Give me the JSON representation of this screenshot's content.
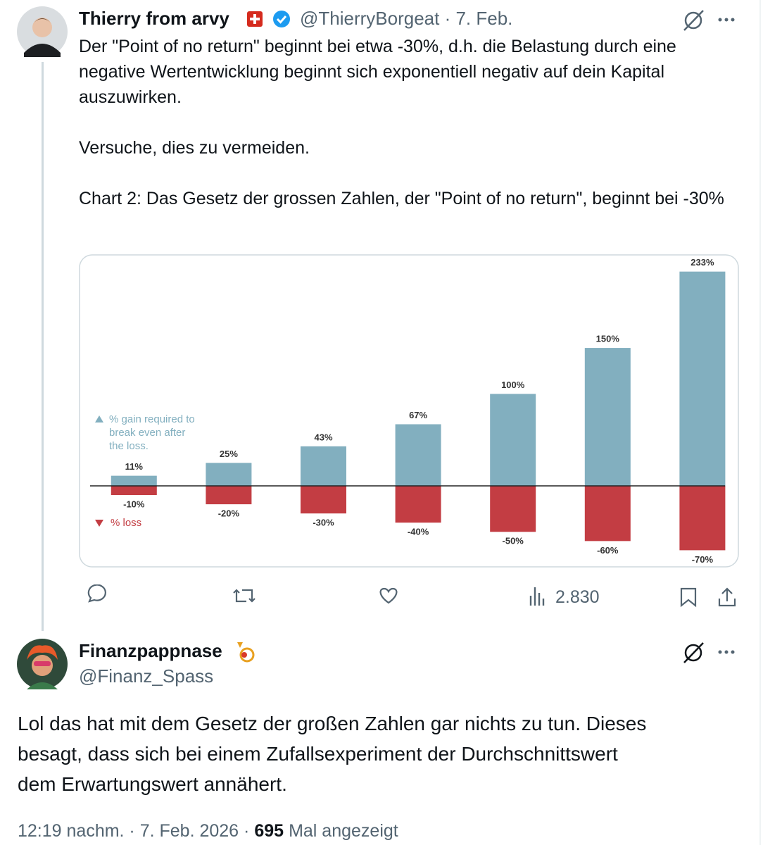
{
  "tweet": {
    "author": "Thierry from arvy",
    "meta": "@ThierryBorgeat · 7. Feb.",
    "paragraphs": [
      "Der \"Point of no return\" beginnt bei etwa -30%, d.h. die Belastung durch eine negative Wertentwicklung beginnt sich exponentiell negativ auf dein Kapital auszuwirken.",
      "Versuche, dies zu vermeiden.",
      "Chart 2: Das Gesetz der grossen Zahlen, der \"Point of no return\", beginnt bei -30%"
    ],
    "views": "2.830"
  },
  "chart_data": {
    "type": "bar",
    "ylim": [
      -85,
      245
    ],
    "series": [
      {
        "name": "% gain required to break even after the loss.",
        "color": "#82afbf",
        "values": [
          11,
          25,
          43,
          67,
          100,
          150,
          233
        ],
        "value_labels": [
          "11%",
          "25%",
          "43%",
          "67%",
          "100%",
          "150%",
          "233%"
        ]
      },
      {
        "name": "% loss",
        "color": "#c33d43",
        "values": [
          -10,
          -20,
          -30,
          -40,
          -50,
          -60,
          -70
        ],
        "value_labels": [
          "-10%",
          "-20%",
          "-30%",
          "-40%",
          "-50%",
          "-60%",
          "-70%"
        ]
      }
    ]
  },
  "reply": {
    "author": "Finanzpappnase",
    "handle": "@Finanz_Spass",
    "text": "Lol das hat mit dem Gesetz der großen Zahlen gar nichts zu tun. Dieses besagt, dass sich bei einem Zufallsexperiment der Durchschnittswert dem Erwartungswert annähert.",
    "timestamp": "12:19 nachm. · 7. Feb. 2026 ·",
    "views": "695",
    "views_label": "Mal angezeigt"
  }
}
